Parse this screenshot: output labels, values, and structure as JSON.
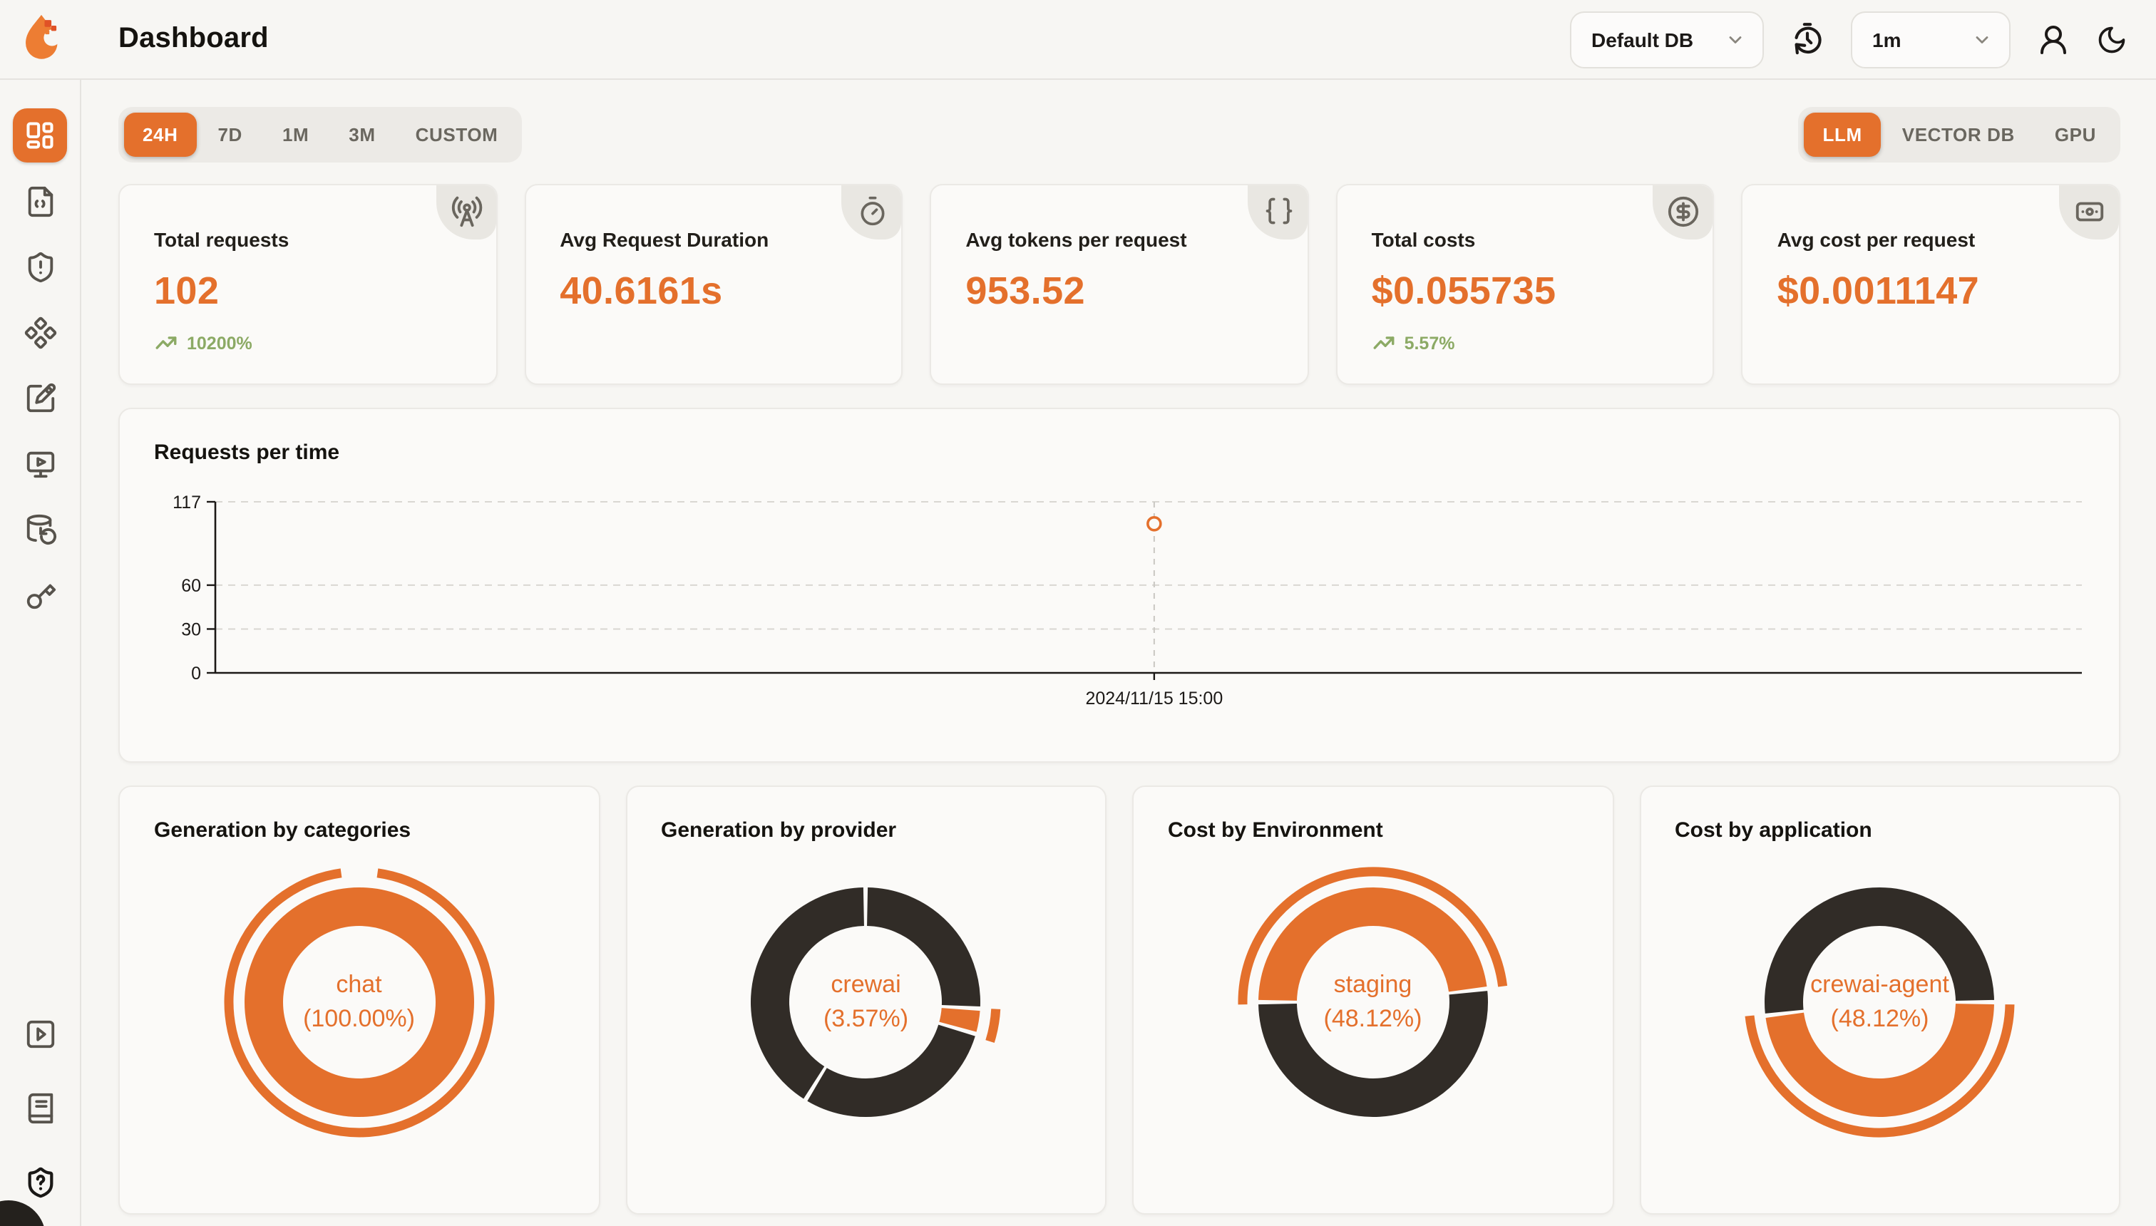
{
  "colors": {
    "orange": "#E4702C",
    "dark": "#312C27",
    "green": "#8CAA65",
    "page_bg": "#F7F6F3",
    "card_bg": "#FBFAF8"
  },
  "header": {
    "title": "Dashboard",
    "logo_icon": "flame-logo-icon",
    "database_select": {
      "value": "Default DB",
      "icon": "chevron-down-icon"
    },
    "refresh_icon": "history-timer-icon",
    "interval_select": {
      "value": "1m",
      "icon": "chevron-down-icon"
    },
    "user_icon": "user-icon",
    "theme_icon": "moon-icon"
  },
  "time_tabs": {
    "active": "24H",
    "items": [
      "24H",
      "7D",
      "1M",
      "3M",
      "CUSTOM"
    ]
  },
  "source_tabs": {
    "active": "LLM",
    "items": [
      "LLM",
      "VECTOR DB",
      "GPU"
    ]
  },
  "stat_cards": [
    {
      "label": "Total requests",
      "value": "102",
      "delta": "10200%",
      "icon": "radio-tower-icon"
    },
    {
      "label": "Avg Request Duration",
      "value": "40.6161s",
      "icon": "timer-icon"
    },
    {
      "label": "Avg tokens per request",
      "value": "953.52",
      "icon": "braces-icon"
    },
    {
      "label": "Total costs",
      "value": "$0.055735",
      "delta": "5.57%",
      "icon": "circle-dollar-icon"
    },
    {
      "label": "Avg cost per request",
      "value": "$0.0011147",
      "icon": "banknote-icon"
    }
  ],
  "sidebar": {
    "active": "dashboard",
    "top_items": [
      {
        "name": "dashboard",
        "icon": "layout-dashboard-icon"
      },
      {
        "name": "requests",
        "icon": "file-code-icon"
      },
      {
        "name": "exceptions",
        "icon": "shield-alert-icon"
      },
      {
        "name": "vault",
        "icon": "diamonds-icon"
      },
      {
        "name": "prompts",
        "icon": "square-pen-icon"
      },
      {
        "name": "playground",
        "icon": "monitor-play-icon"
      },
      {
        "name": "database-config",
        "icon": "database-backup-icon"
      },
      {
        "name": "api-keys",
        "icon": "key-icon"
      }
    ],
    "bottom_items": [
      {
        "name": "getting-started",
        "icon": "square-play-icon"
      },
      {
        "name": "documentation",
        "icon": "book-icon"
      },
      {
        "name": "support",
        "icon": "shield-question-icon"
      }
    ]
  },
  "chart_data": [
    {
      "type": "line",
      "title": "Requests per time",
      "xlabel": "",
      "ylabel": "",
      "ylim": [
        0,
        117
      ],
      "yticks": [
        117,
        60,
        30,
        0
      ],
      "grid": true,
      "x": [
        "2024/11/15 15:00"
      ],
      "series": [
        {
          "name": "Requests",
          "values": [
            102
          ]
        }
      ],
      "marker": "open-circle",
      "point_x_fraction": 0.503
    },
    {
      "type": "pie",
      "title": "Generation by categories",
      "center": [
        "chat",
        "(100.00%)"
      ],
      "segments": [
        {
          "label": "chat",
          "pct": 100,
          "color": "orange"
        }
      ],
      "start_angle": 0,
      "outer_arc": {
        "start": 8,
        "end": 352
      }
    },
    {
      "type": "pie",
      "title": "Generation by provider",
      "center": [
        "crewai",
        "(3.57%)"
      ],
      "segments": [
        {
          "label": "",
          "pct": 25.9,
          "color": "dark"
        },
        {
          "label": "crewai",
          "pct": 3.57,
          "color": "orange"
        },
        {
          "label": "",
          "pct": 29.3,
          "color": "dark"
        },
        {
          "label": "",
          "pct": 41.23,
          "color": "dark"
        }
      ],
      "start_angle": 0,
      "outer_arc": {
        "start": 93,
        "end": 107.5
      }
    },
    {
      "type": "pie",
      "title": "Cost by Environment",
      "center": [
        "staging",
        "(48.12%)"
      ],
      "segments": [
        {
          "label": "staging",
          "pct": 48.12,
          "color": "orange"
        },
        {
          "label": "",
          "pct": 51.88,
          "color": "dark"
        }
      ],
      "start_angle": 270,
      "outer_arc": {
        "start": 269,
        "end": 443
      }
    },
    {
      "type": "pie",
      "title": "Cost by application",
      "center": [
        "crewai-agent",
        "(48.12%)"
      ],
      "segments": [
        {
          "label": "crewai-agent",
          "pct": 48.12,
          "color": "orange"
        },
        {
          "label": "",
          "pct": 51.88,
          "color": "dark"
        }
      ],
      "start_angle": 90,
      "outer_arc": {
        "start": 91,
        "end": 264
      }
    }
  ]
}
